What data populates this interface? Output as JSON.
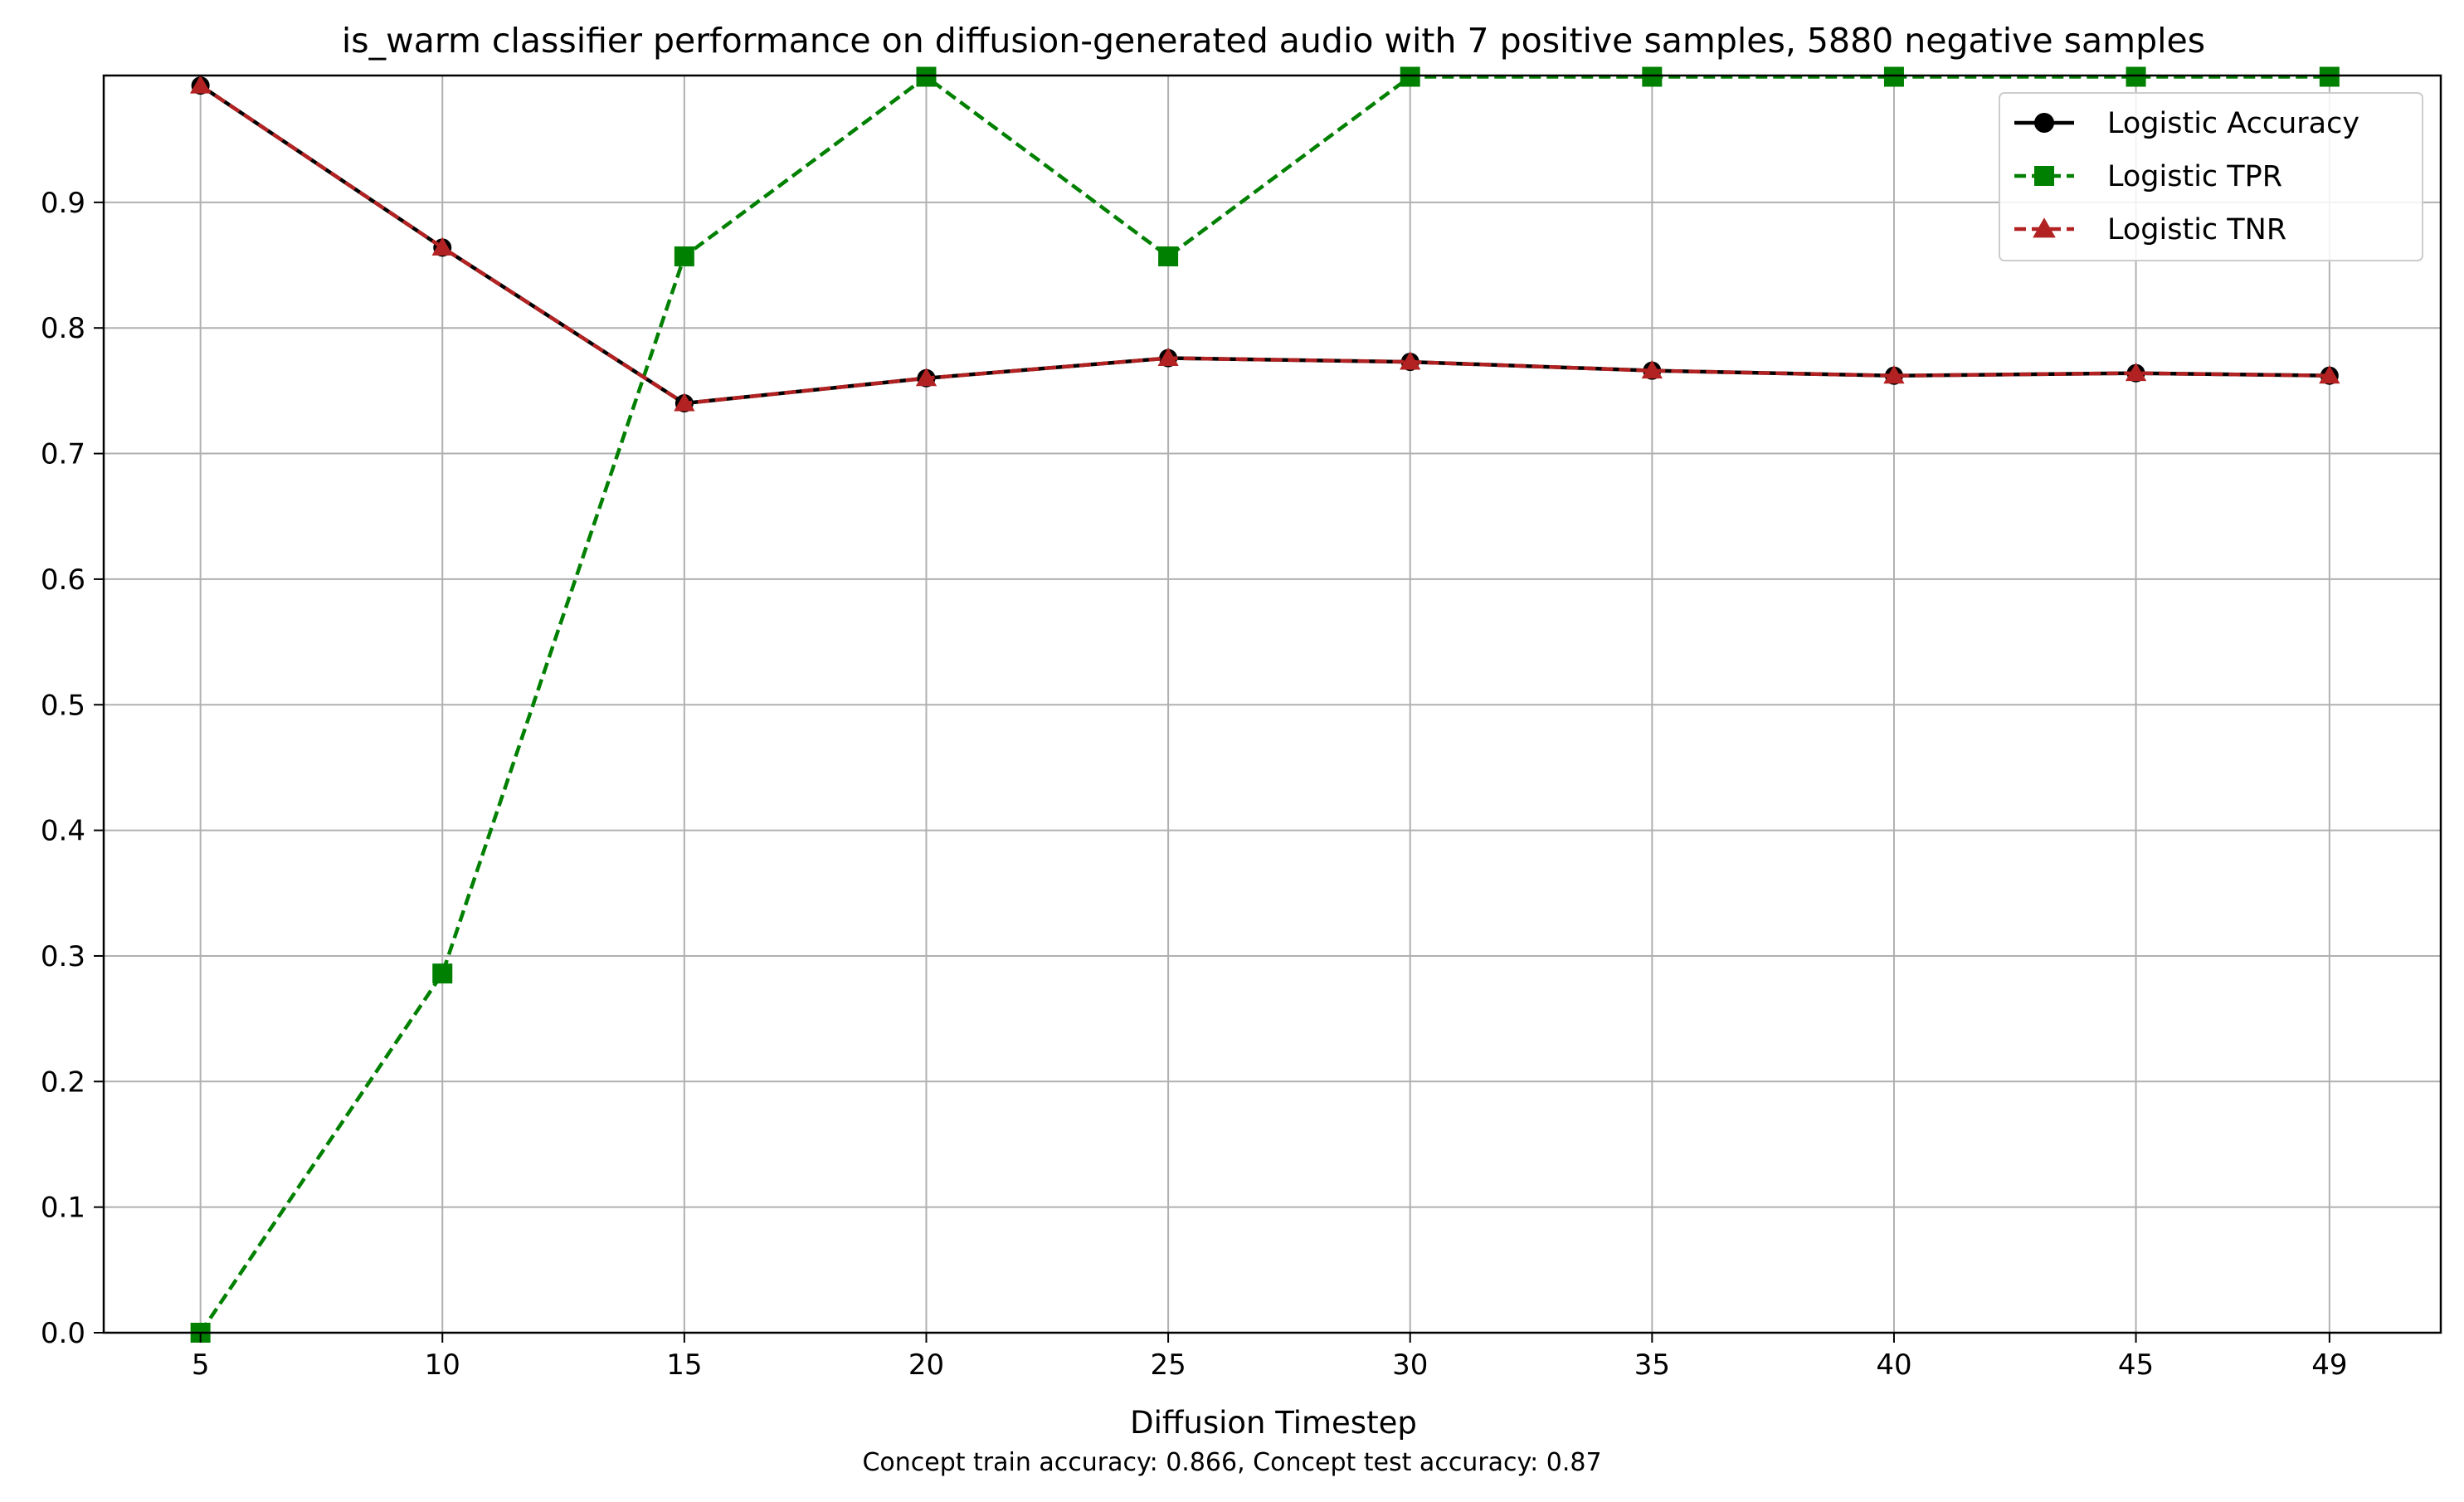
{
  "chart_data": {
    "type": "line",
    "title": "is_warm classifier performance on diffusion-generated audio with 7 positive samples, 5880 negative samples",
    "xlabel": "Diffusion Timestep",
    "caption": "Concept train accuracy: 0.866, Concept test accuracy: 0.87",
    "ylabel": "",
    "x": [
      5,
      10,
      15,
      20,
      25,
      30,
      35,
      40,
      45,
      49
    ],
    "x_tick_labels": [
      "5",
      "10",
      "15",
      "20",
      "25",
      "30",
      "35",
      "40",
      "45",
      "49"
    ],
    "ylim": [
      0,
      1.0
    ],
    "y_ticks": [
      0.0,
      0.1,
      0.2,
      0.3,
      0.4,
      0.5,
      0.6,
      0.7,
      0.8,
      0.9
    ],
    "y_tick_labels": [
      "0.0",
      "0.1",
      "0.2",
      "0.3",
      "0.4",
      "0.5",
      "0.6",
      "0.7",
      "0.8",
      "0.9"
    ],
    "grid": true,
    "legend_position": "top-right",
    "series": [
      {
        "name": "Logistic Accuracy",
        "color": "#000000",
        "line_style": "solid",
        "marker": "circle",
        "values": [
          0.993,
          0.864,
          0.74,
          0.76,
          0.776,
          0.773,
          0.766,
          0.762,
          0.764,
          0.762
        ]
      },
      {
        "name": "Logistic TPR",
        "color": "#008000",
        "line_style": "dashed",
        "marker": "square",
        "values": [
          0.0,
          0.286,
          0.857,
          1.0,
          0.857,
          1.0,
          1.0,
          1.0,
          1.0,
          1.0
        ]
      },
      {
        "name": "Logistic TNR",
        "color": "#b22222",
        "line_style": "dashed",
        "marker": "triangle",
        "values": [
          0.993,
          0.864,
          0.74,
          0.76,
          0.776,
          0.773,
          0.766,
          0.762,
          0.764,
          0.762
        ]
      }
    ]
  }
}
